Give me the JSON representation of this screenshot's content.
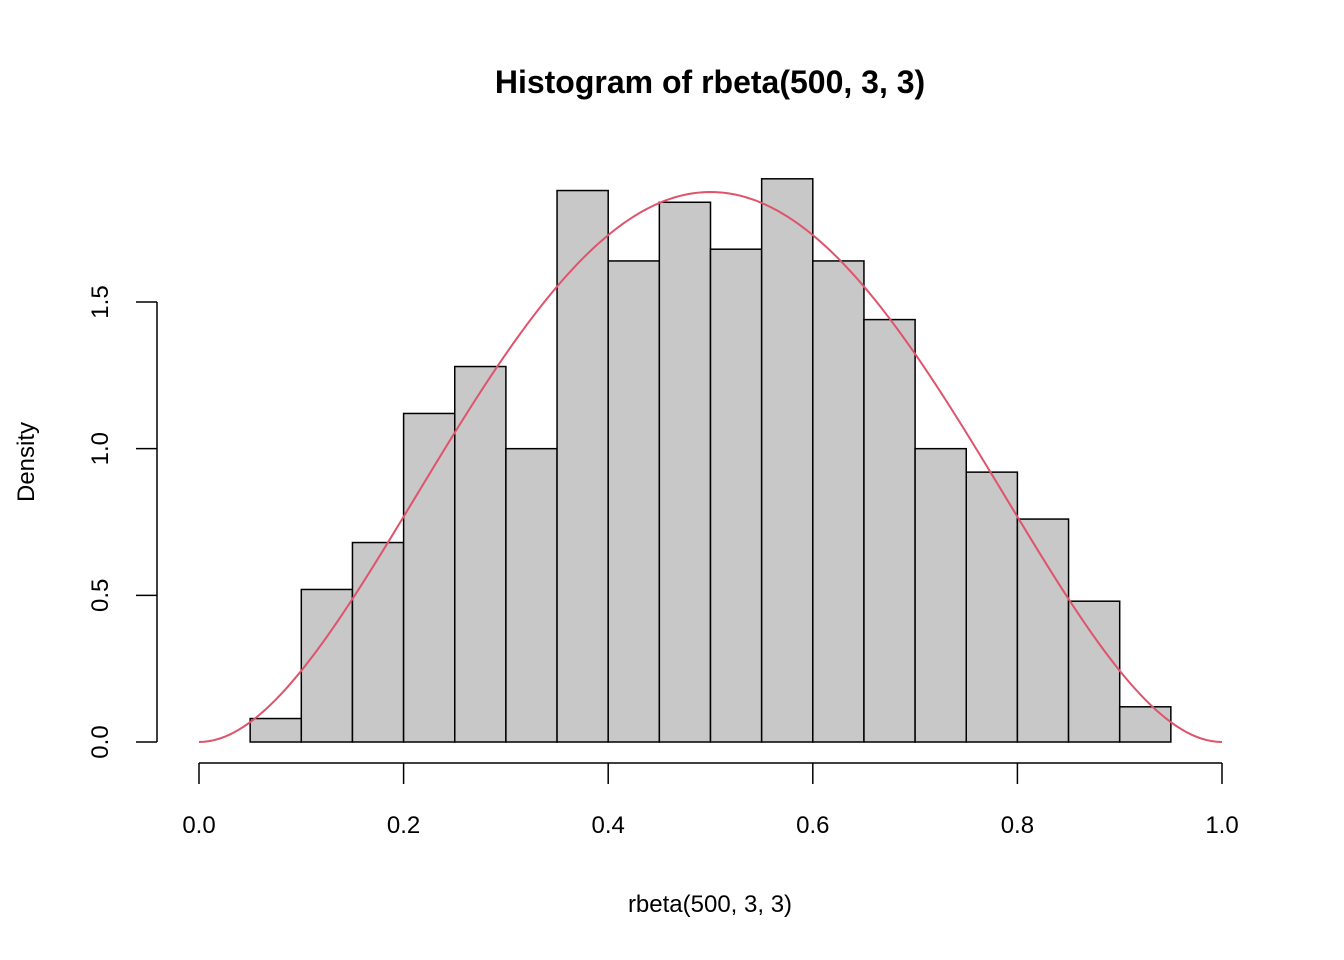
{
  "chart_data": {
    "type": "bar",
    "title": "Histogram of rbeta(500, 3, 3)",
    "xlabel": "rbeta(500, 3, 3)",
    "ylabel": "Density",
    "xlim": [
      0,
      1
    ],
    "ylim": [
      0,
      1.95
    ],
    "x_ticks": [
      0.0,
      0.2,
      0.4,
      0.6,
      0.8,
      1.0
    ],
    "x_tick_labels": [
      "0.0",
      "0.2",
      "0.4",
      "0.6",
      "0.8",
      "1.0"
    ],
    "y_ticks": [
      0.0,
      0.5,
      1.0,
      1.5
    ],
    "y_tick_labels": [
      "0.0",
      "0.5",
      "1.0",
      "1.5"
    ],
    "bins": [
      {
        "x0": 0.05,
        "x1": 0.1,
        "density": 0.08
      },
      {
        "x0": 0.1,
        "x1": 0.15,
        "density": 0.52
      },
      {
        "x0": 0.15,
        "x1": 0.2,
        "density": 0.68
      },
      {
        "x0": 0.2,
        "x1": 0.25,
        "density": 1.12
      },
      {
        "x0": 0.25,
        "x1": 0.3,
        "density": 1.28
      },
      {
        "x0": 0.3,
        "x1": 0.35,
        "density": 1.0
      },
      {
        "x0": 0.35,
        "x1": 0.4,
        "density": 1.88
      },
      {
        "x0": 0.4,
        "x1": 0.45,
        "density": 1.64
      },
      {
        "x0": 0.45,
        "x1": 0.5,
        "density": 1.84
      },
      {
        "x0": 0.5,
        "x1": 0.55,
        "density": 1.68
      },
      {
        "x0": 0.55,
        "x1": 0.6,
        "density": 1.92
      },
      {
        "x0": 0.6,
        "x1": 0.65,
        "density": 1.64
      },
      {
        "x0": 0.65,
        "x1": 0.7,
        "density": 1.44
      },
      {
        "x0": 0.7,
        "x1": 0.75,
        "density": 1.0
      },
      {
        "x0": 0.75,
        "x1": 0.8,
        "density": 0.92
      },
      {
        "x0": 0.8,
        "x1": 0.85,
        "density": 0.76
      },
      {
        "x0": 0.85,
        "x1": 0.9,
        "density": 0.48
      },
      {
        "x0": 0.9,
        "x1": 0.95,
        "density": 0.12
      }
    ],
    "overlay_curve": {
      "type": "line",
      "function": "dbeta(x, 3, 3)",
      "color": "#DF536B",
      "x_range": [
        0,
        1
      ]
    },
    "bar_fill": "#C8C8C8",
    "grid": false
  }
}
